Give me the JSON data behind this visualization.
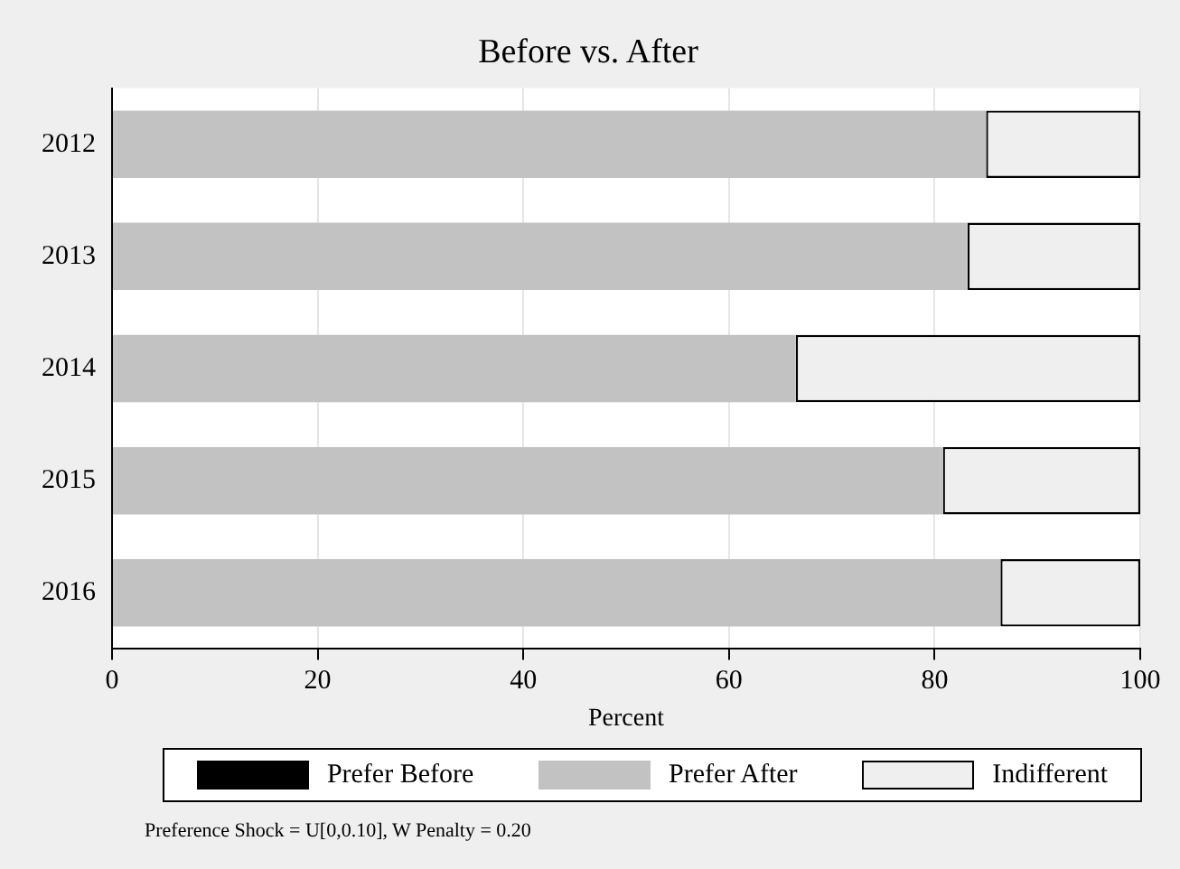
{
  "chart_data": {
    "type": "bar",
    "orientation": "horizontal",
    "stacked": true,
    "title": "Before vs. After",
    "xlabel": "Percent",
    "categories": [
      "2012",
      "2013",
      "2014",
      "2015",
      "2016"
    ],
    "series": [
      {
        "name": "Prefer Before",
        "color": "#000000",
        "values": [
          0,
          0,
          0,
          0,
          0
        ]
      },
      {
        "name": "Prefer After",
        "color": "#c2c2c2",
        "values": [
          85.0,
          83.2,
          66.5,
          80.8,
          86.4
        ]
      },
      {
        "name": "Indifferent",
        "color": "#efefef",
        "values": [
          15.0,
          16.8,
          33.5,
          19.2,
          13.6
        ]
      }
    ],
    "xlim": [
      0,
      100
    ],
    "xticks": [
      0,
      20,
      40,
      60,
      80,
      100
    ],
    "grid": "x",
    "legend": "bottom",
    "annotations": [
      "Preference Shock = U[0,0.10], W Penalty = 0.20"
    ]
  }
}
